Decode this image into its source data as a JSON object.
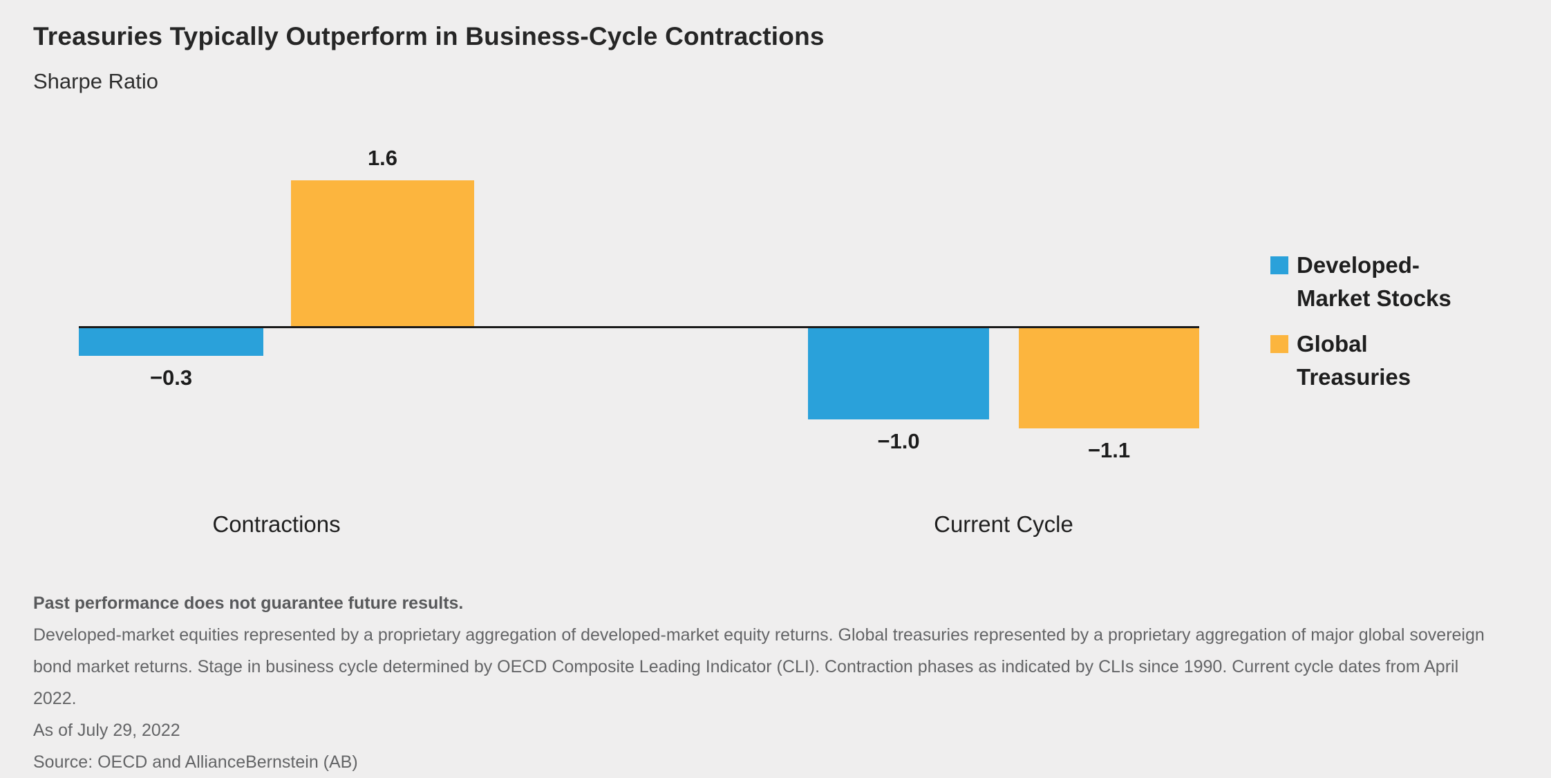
{
  "header": {
    "title": "Treasuries Typically Outperform in Business-Cycle Contractions",
    "subtitle": "Sharpe Ratio"
  },
  "chart_data": {
    "type": "bar",
    "title": "Treasuries Typically Outperform in Business-Cycle Contractions",
    "ylabel": "Sharpe Ratio",
    "categories": [
      "Contractions",
      "Current Cycle"
    ],
    "series": [
      {
        "name": "Developed-Market Stocks",
        "color": "#2AA1DA",
        "values": [
          -0.3,
          -1.0
        ]
      },
      {
        "name": "Global Treasuries",
        "color": "#FCB53E",
        "values": [
          1.6,
          -1.1
        ]
      }
    ],
    "value_labels": [
      [
        "−0.3",
        "−1.0"
      ],
      [
        "1.6",
        "−1.1"
      ]
    ],
    "ylim": [
      -1.4,
      1.9
    ],
    "grid": false,
    "baseline": 0,
    "legend_position": "right"
  },
  "footnotes": {
    "disclaimer_bold": "Past performance does not guarantee future results.",
    "body": "Developed-market equities represented by a proprietary aggregation of developed-market equity returns. Global treasuries represented by a proprietary aggregation of major global sovereign bond market returns. Stage in business cycle determined by OECD Composite Leading Indicator (CLI). Contraction phases as indicated by CLIs since 1990. Current cycle dates from April 2022.",
    "as_of": "As of July 29, 2022",
    "source": "Source: OECD and AllianceBernstein (AB)"
  }
}
